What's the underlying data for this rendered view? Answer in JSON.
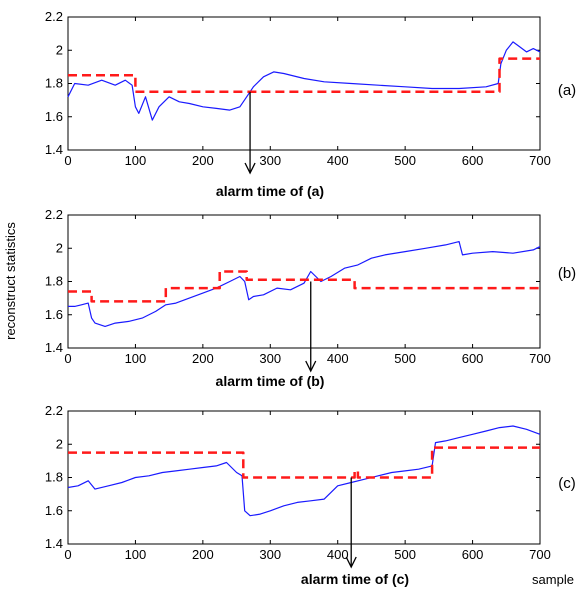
{
  "figure": {
    "ylabel": "reconstruct statistics",
    "xlabel": "sample"
  },
  "colors": {
    "measured": "#1a1aff",
    "reference": "#ff1a1a",
    "arrow": "#000000"
  },
  "chart_data": [
    {
      "type": "line",
      "panel_label": "(a)",
      "annotation": "alarm time of (a)",
      "alarm_x": 270,
      "xlim": [
        0,
        700
      ],
      "ylim": [
        1.4,
        2.2
      ],
      "xticks": [
        0,
        100,
        200,
        300,
        400,
        500,
        600,
        700
      ],
      "yticks": [
        1.4,
        1.6,
        1.8,
        2,
        2.2
      ],
      "series": [
        {
          "style": "solid",
          "color": "#1a1aff",
          "x": [
            0,
            10,
            30,
            50,
            70,
            85,
            95,
            100,
            105,
            115,
            125,
            135,
            150,
            165,
            180,
            200,
            220,
            240,
            255,
            265,
            275,
            290,
            305,
            320,
            350,
            380,
            420,
            460,
            500,
            540,
            580,
            620,
            638,
            642,
            650,
            660,
            670,
            680,
            690,
            700
          ],
          "y": [
            1.72,
            1.8,
            1.79,
            1.82,
            1.79,
            1.82,
            1.79,
            1.66,
            1.62,
            1.72,
            1.58,
            1.66,
            1.72,
            1.69,
            1.68,
            1.66,
            1.65,
            1.64,
            1.66,
            1.72,
            1.78,
            1.84,
            1.87,
            1.86,
            1.83,
            1.81,
            1.8,
            1.79,
            1.78,
            1.77,
            1.77,
            1.78,
            1.8,
            1.92,
            2.0,
            2.05,
            2.02,
            1.99,
            2.01,
            1.99
          ]
        },
        {
          "style": "dashed",
          "color": "#ff1a1a",
          "x": [
            0,
            100,
            100,
            640,
            640,
            700
          ],
          "y": [
            1.85,
            1.85,
            1.75,
            1.75,
            1.95,
            1.95
          ]
        }
      ]
    },
    {
      "type": "line",
      "panel_label": "(b)",
      "annotation": "alarm time of (b)",
      "alarm_x": 360,
      "xlim": [
        0,
        700
      ],
      "ylim": [
        1.4,
        2.2
      ],
      "xticks": [
        0,
        100,
        200,
        300,
        400,
        500,
        600,
        700
      ],
      "yticks": [
        1.4,
        1.6,
        1.8,
        2,
        2.2
      ],
      "series": [
        {
          "style": "solid",
          "color": "#1a1aff",
          "x": [
            0,
            10,
            20,
            30,
            35,
            40,
            55,
            70,
            90,
            110,
            130,
            145,
            160,
            180,
            200,
            220,
            240,
            255,
            262,
            268,
            275,
            290,
            310,
            330,
            350,
            360,
            375,
            390,
            410,
            430,
            450,
            470,
            500,
            530,
            560,
            580,
            585,
            600,
            630,
            660,
            690,
            700
          ],
          "y": [
            1.65,
            1.65,
            1.66,
            1.67,
            1.58,
            1.55,
            1.53,
            1.55,
            1.56,
            1.58,
            1.62,
            1.66,
            1.67,
            1.7,
            1.73,
            1.76,
            1.8,
            1.83,
            1.8,
            1.69,
            1.71,
            1.72,
            1.76,
            1.75,
            1.79,
            1.86,
            1.8,
            1.83,
            1.88,
            1.9,
            1.94,
            1.96,
            1.98,
            2.0,
            2.02,
            2.04,
            1.96,
            1.97,
            1.98,
            1.97,
            1.99,
            2.01
          ]
        },
        {
          "style": "dashed",
          "color": "#ff1a1a",
          "x": [
            0,
            35,
            35,
            145,
            145,
            225,
            225,
            265,
            265,
            425,
            425,
            700
          ],
          "y": [
            1.74,
            1.74,
            1.68,
            1.68,
            1.76,
            1.76,
            1.86,
            1.86,
            1.81,
            1.81,
            1.76,
            1.76
          ]
        }
      ]
    },
    {
      "type": "line",
      "panel_label": "(c)",
      "annotation": "alarm time of (c)",
      "alarm_x": 420,
      "xlim": [
        0,
        700
      ],
      "ylim": [
        1.4,
        2.2
      ],
      "xticks": [
        0,
        100,
        200,
        300,
        400,
        500,
        600,
        700
      ],
      "yticks": [
        1.4,
        1.6,
        1.8,
        2,
        2.2
      ],
      "series": [
        {
          "style": "solid",
          "color": "#1a1aff",
          "x": [
            0,
            15,
            30,
            40,
            60,
            80,
            100,
            120,
            140,
            160,
            180,
            200,
            220,
            235,
            250,
            258,
            262,
            270,
            285,
            300,
            320,
            340,
            360,
            380,
            400,
            420,
            440,
            460,
            480,
            500,
            520,
            540,
            545,
            560,
            580,
            600,
            620,
            640,
            660,
            680,
            700
          ],
          "y": [
            1.74,
            1.75,
            1.78,
            1.73,
            1.75,
            1.77,
            1.8,
            1.81,
            1.83,
            1.84,
            1.85,
            1.86,
            1.87,
            1.89,
            1.83,
            1.81,
            1.6,
            1.57,
            1.58,
            1.6,
            1.63,
            1.65,
            1.66,
            1.67,
            1.75,
            1.77,
            1.79,
            1.81,
            1.83,
            1.84,
            1.85,
            1.87,
            2.01,
            2.02,
            2.04,
            2.06,
            2.08,
            2.1,
            2.11,
            2.09,
            2.06
          ]
        },
        {
          "style": "dashed",
          "color": "#ff1a1a",
          "x": [
            0,
            260,
            260,
            425,
            425,
            430,
            430,
            540,
            540,
            700
          ],
          "y": [
            1.95,
            1.95,
            1.8,
            1.8,
            1.84,
            1.84,
            1.8,
            1.8,
            1.98,
            1.98
          ]
        }
      ]
    }
  ]
}
